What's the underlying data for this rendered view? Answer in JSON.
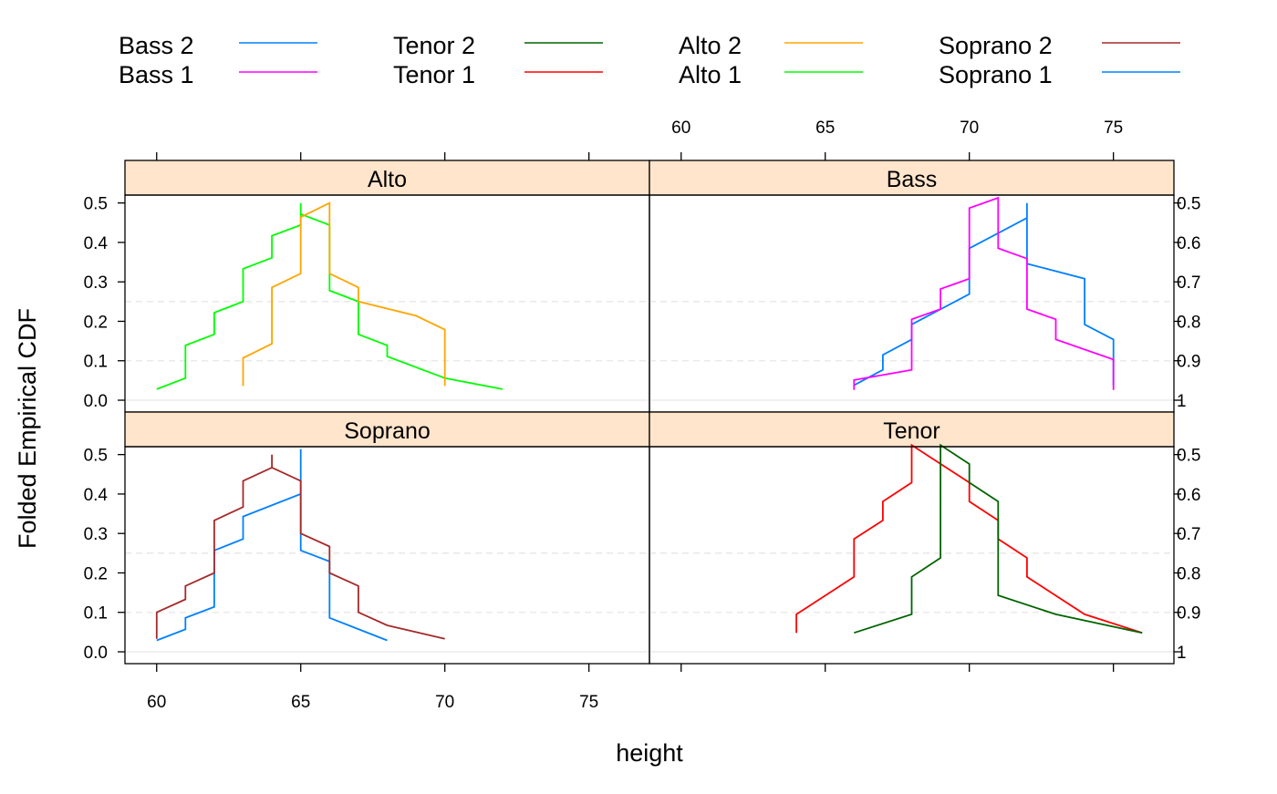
{
  "chart_data": {
    "type": "line",
    "title": "",
    "xlabel": "height",
    "ylabel": "Folded Empirical CDF",
    "left_yticks": [
      "0.0",
      "0.1",
      "0.2",
      "0.3",
      "0.4",
      "0.5"
    ],
    "right_yticks": [
      "1",
      "0.9",
      "0.8",
      "0.7",
      "0.6",
      "0.5"
    ],
    "xticks": [
      "60",
      "65",
      "70",
      "75"
    ],
    "xlim": [
      58.9,
      77.1
    ],
    "ylim": [
      -0.03,
      0.52
    ],
    "reference_lines": [
      0.1,
      0.25
    ],
    "legend": {
      "placement": "top",
      "items": [
        {
          "name": "Bass 2",
          "color": "#0080ff"
        },
        {
          "name": "Bass 1",
          "color": "#ff00ff"
        },
        {
          "name": "Tenor 2",
          "color": "#006400"
        },
        {
          "name": "Tenor 1",
          "color": "#ff0000"
        },
        {
          "name": "Alto 2",
          "color": "#ffa500"
        },
        {
          "name": "Alto 1",
          "color": "#00ff00"
        },
        {
          "name": "Soprano 2",
          "color": "#a52a2a"
        },
        {
          "name": "Soprano 1",
          "color": "#0080ff"
        }
      ]
    },
    "panels": [
      {
        "name": "Alto",
        "series": [
          {
            "name": "Alto 1",
            "color": "#00ff00",
            "points": [
              [
                60,
                0.028
              ],
              [
                61,
                0.056
              ],
              [
                61,
                0.139
              ],
              [
                62,
                0.167
              ],
              [
                62,
                0.222
              ],
              [
                63,
                0.25
              ],
              [
                63,
                0.333
              ],
              [
                64,
                0.361
              ],
              [
                64,
                0.417
              ],
              [
                65,
                0.444
              ],
              [
                65,
                0.5
              ],
              [
                65,
                0.472
              ],
              [
                66,
                0.444
              ],
              [
                66,
                0.278
              ],
              [
                67,
                0.25
              ],
              [
                67,
                0.167
              ],
              [
                68,
                0.139
              ],
              [
                68,
                0.111
              ],
              [
                70,
                0.056
              ],
              [
                72,
                0.028
              ]
            ]
          },
          {
            "name": "Alto 2",
            "color": "#ffa500",
            "points": [
              [
                63,
                0.036
              ],
              [
                63,
                0.107
              ],
              [
                64,
                0.143
              ],
              [
                64,
                0.286
              ],
              [
                65,
                0.321
              ],
              [
                65,
                0.464
              ],
              [
                66,
                0.5
              ],
              [
                66,
                0.321
              ],
              [
                67,
                0.286
              ],
              [
                67,
                0.25
              ],
              [
                69,
                0.214
              ],
              [
                70,
                0.179
              ],
              [
                70,
                0.036
              ]
            ]
          }
        ]
      },
      {
        "name": "Bass",
        "series": [
          {
            "name": "Bass 2",
            "color": "#0080ff",
            "points": [
              [
                66,
                0.038
              ],
              [
                67,
                0.077
              ],
              [
                67,
                0.115
              ],
              [
                68,
                0.154
              ],
              [
                68,
                0.192
              ],
              [
                70,
                0.269
              ],
              [
                70,
                0.385
              ],
              [
                72,
                0.462
              ],
              [
                72,
                0.5
              ],
              [
                72,
                0.346
              ],
              [
                74,
                0.308
              ],
              [
                74,
                0.192
              ],
              [
                75,
                0.154
              ],
              [
                75,
                0.038
              ]
            ]
          },
          {
            "name": "Bass 1",
            "color": "#ff00ff",
            "points": [
              [
                66,
                0.026
              ],
              [
                66,
                0.051
              ],
              [
                68,
                0.077
              ],
              [
                68,
                0.205
              ],
              [
                69,
                0.231
              ],
              [
                69,
                0.282
              ],
              [
                70,
                0.308
              ],
              [
                70,
                0.487
              ],
              [
                71,
                0.513
              ],
              [
                71,
                0.385
              ],
              [
                72,
                0.359
              ],
              [
                72,
                0.231
              ],
              [
                73,
                0.205
              ],
              [
                73,
                0.154
              ],
              [
                75,
                0.103
              ],
              [
                75,
                0.026
              ]
            ]
          }
        ]
      },
      {
        "name": "Soprano",
        "series": [
          {
            "name": "Soprano 1",
            "color": "#0080ff",
            "points": [
              [
                60,
                0.029
              ],
              [
                61,
                0.057
              ],
              [
                61,
                0.086
              ],
              [
                62,
                0.114
              ],
              [
                62,
                0.257
              ],
              [
                63,
                0.286
              ],
              [
                63,
                0.343
              ],
              [
                65,
                0.4
              ],
              [
                65,
                0.514
              ],
              [
                65,
                0.257
              ],
              [
                66,
                0.229
              ],
              [
                66,
                0.086
              ],
              [
                68,
                0.029
              ]
            ]
          },
          {
            "name": "Soprano 2",
            "color": "#a52a2a",
            "points": [
              [
                60,
                0.033
              ],
              [
                60,
                0.1
              ],
              [
                61,
                0.133
              ],
              [
                61,
                0.167
              ],
              [
                62,
                0.2
              ],
              [
                62,
                0.333
              ],
              [
                63,
                0.367
              ],
              [
                63,
                0.433
              ],
              [
                64,
                0.467
              ],
              [
                64,
                0.5
              ],
              [
                64,
                0.467
              ],
              [
                65,
                0.433
              ],
              [
                65,
                0.3
              ],
              [
                66,
                0.267
              ],
              [
                66,
                0.2
              ],
              [
                67,
                0.167
              ],
              [
                67,
                0.1
              ],
              [
                68,
                0.067
              ],
              [
                70,
                0.033
              ]
            ]
          }
        ]
      },
      {
        "name": "Tenor",
        "series": [
          {
            "name": "Tenor 1",
            "color": "#ff0000",
            "points": [
              [
                64,
                0.048
              ],
              [
                64,
                0.095
              ],
              [
                66,
                0.19
              ],
              [
                66,
                0.286
              ],
              [
                67,
                0.333
              ],
              [
                67,
                0.381
              ],
              [
                68,
                0.429
              ],
              [
                68,
                0.524
              ],
              [
                70,
                0.429
              ],
              [
                70,
                0.381
              ],
              [
                71,
                0.333
              ],
              [
                71,
                0.286
              ],
              [
                72,
                0.238
              ],
              [
                72,
                0.19
              ],
              [
                74,
                0.095
              ],
              [
                76,
                0.048
              ]
            ]
          },
          {
            "name": "Tenor 2",
            "color": "#006400",
            "points": [
              [
                66,
                0.048
              ],
              [
                68,
                0.095
              ],
              [
                68,
                0.19
              ],
              [
                69,
                0.238
              ],
              [
                69,
                0.524
              ],
              [
                70,
                0.476
              ],
              [
                70,
                0.429
              ],
              [
                71,
                0.381
              ],
              [
                71,
                0.143
              ],
              [
                73,
                0.095
              ],
              [
                76,
                0.048
              ]
            ]
          }
        ]
      }
    ]
  }
}
